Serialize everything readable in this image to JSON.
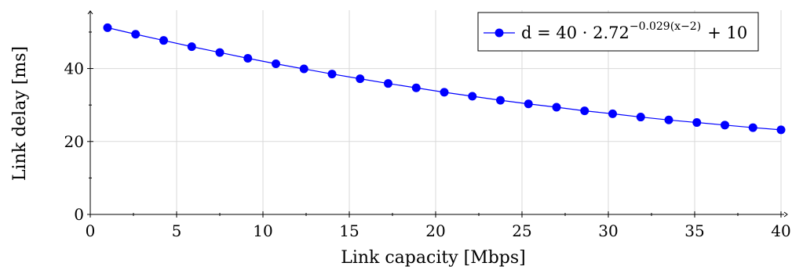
{
  "chart_data": {
    "type": "line",
    "xlabel": "Link capacity [Mbps]",
    "ylabel": "Link delay [ms]",
    "xlim": [
      0,
      40
    ],
    "ylim": [
      0,
      56
    ],
    "xticks": [
      0,
      5,
      10,
      15,
      20,
      25,
      30,
      35,
      40
    ],
    "yticks": [
      0,
      20,
      40
    ],
    "grid": true,
    "legend_position": "top-right",
    "series": [
      {
        "name": "d = 40 · 2.72^{−0.029(x−2)} + 10",
        "legend_base": "d = 40 · 2.72",
        "legend_exponent": "−0.029(x−2)",
        "legend_tail": "+ 10",
        "color": "#0000ff",
        "marker": "circle",
        "x": [
          1,
          2.625,
          4.25,
          5.875,
          7.5,
          9.125,
          10.75,
          12.375,
          14,
          15.625,
          17.25,
          18.875,
          20.5,
          22.125,
          23.75,
          25.375,
          27,
          28.625,
          30.25,
          31.875,
          33.5,
          35.125,
          36.75,
          38.375,
          40
        ],
        "y": [
          51.2,
          49.4,
          47.7,
          46.0,
          44.4,
          42.8,
          41.3,
          39.9,
          38.5,
          37.2,
          35.9,
          34.7,
          33.5,
          32.4,
          31.3,
          30.3,
          29.4,
          28.4,
          27.6,
          26.7,
          25.9,
          25.2,
          24.5,
          23.8,
          23.2
        ]
      }
    ]
  }
}
